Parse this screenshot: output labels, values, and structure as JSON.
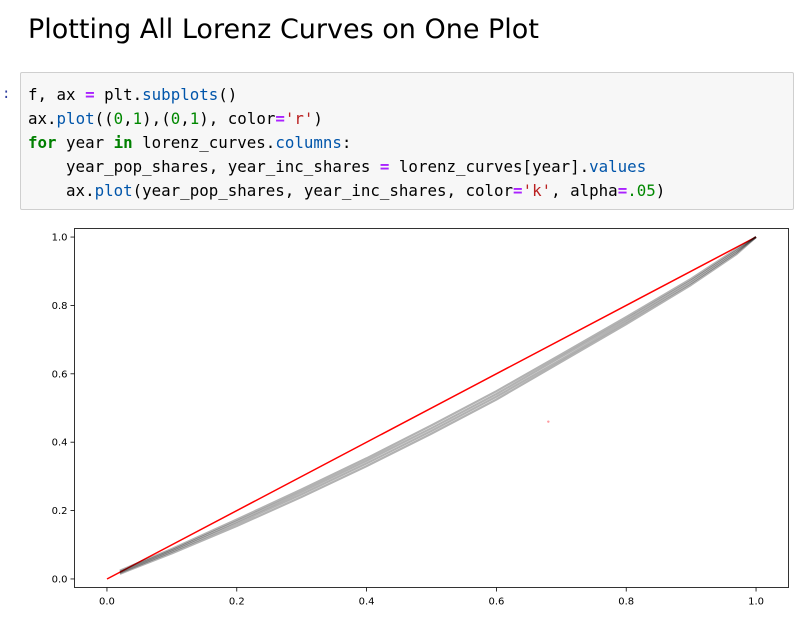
{
  "heading": "Plotting All Lorenz Curves on One Plot",
  "cell": {
    "prompt": ":",
    "lines": [
      [
        {
          "t": "f, ax ",
          "c": ""
        },
        {
          "t": "=",
          "c": "op"
        },
        {
          "t": " plt.",
          "c": ""
        },
        {
          "t": "subplots",
          "c": "fn"
        },
        {
          "t": "()",
          "c": ""
        }
      ],
      [
        {
          "t": "ax.",
          "c": ""
        },
        {
          "t": "plot",
          "c": "fn"
        },
        {
          "t": "((",
          "c": ""
        },
        {
          "t": "0",
          "c": "num"
        },
        {
          "t": ",",
          "c": ""
        },
        {
          "t": "1",
          "c": "num"
        },
        {
          "t": "),(",
          "c": ""
        },
        {
          "t": "0",
          "c": "num"
        },
        {
          "t": ",",
          "c": ""
        },
        {
          "t": "1",
          "c": "num"
        },
        {
          "t": "), color",
          "c": ""
        },
        {
          "t": "=",
          "c": "op"
        },
        {
          "t": "'r'",
          "c": "str"
        },
        {
          "t": ")",
          "c": ""
        }
      ],
      [
        {
          "t": "for",
          "c": "kw"
        },
        {
          "t": " year ",
          "c": ""
        },
        {
          "t": "in",
          "c": "kw"
        },
        {
          "t": " lorenz_curves.",
          "c": ""
        },
        {
          "t": "columns",
          "c": "fn"
        },
        {
          "t": ":",
          "c": ""
        }
      ],
      [
        {
          "t": "    year_pop_shares, year_inc_shares ",
          "c": ""
        },
        {
          "t": "=",
          "c": "op"
        },
        {
          "t": " lorenz_curves[year].",
          "c": ""
        },
        {
          "t": "values",
          "c": "fn"
        }
      ],
      [
        {
          "t": "    ax.",
          "c": ""
        },
        {
          "t": "plot",
          "c": "fn"
        },
        {
          "t": "(year_pop_shares, year_inc_shares, color",
          "c": ""
        },
        {
          "t": "=",
          "c": "op"
        },
        {
          "t": "'k'",
          "c": "str"
        },
        {
          "t": ", alpha",
          "c": ""
        },
        {
          "t": "=",
          "c": "op"
        },
        {
          "t": ".05",
          "c": "num"
        },
        {
          "t": ")",
          "c": ""
        }
      ]
    ]
  },
  "chart_data": {
    "type": "line",
    "title": "",
    "xlabel": "",
    "ylabel": "",
    "xlim": [
      -0.05,
      1.05
    ],
    "ylim": [
      -0.025,
      1.025
    ],
    "xticks": [
      0.0,
      0.2,
      0.4,
      0.6,
      0.8,
      1.0
    ],
    "yticks": [
      0.0,
      0.2,
      0.4,
      0.6,
      0.8,
      1.0
    ],
    "xtick_labels": [
      "0.0",
      "0.2",
      "0.4",
      "0.6",
      "0.8",
      "1.0"
    ],
    "ytick_labels": [
      "0.0",
      "0.2",
      "0.4",
      "0.6",
      "0.8",
      "1.0"
    ],
    "grid": false,
    "series": [
      {
        "color": "#ff0000",
        "alpha": 1.0,
        "x": [
          0,
          1
        ],
        "y": [
          0,
          1
        ]
      },
      {
        "color": "#000000",
        "alpha": 0.3,
        "x": [
          0.02,
          0.1,
          0.2,
          0.3,
          0.4,
          0.5,
          0.6,
          0.7,
          0.8,
          0.9,
          0.97,
          1.0
        ],
        "y": [
          0.015,
          0.075,
          0.155,
          0.24,
          0.33,
          0.425,
          0.525,
          0.635,
          0.745,
          0.86,
          0.95,
          1.0
        ]
      },
      {
        "color": "#000000",
        "alpha": 0.3,
        "x": [
          0.02,
          0.1,
          0.2,
          0.3,
          0.4,
          0.5,
          0.6,
          0.7,
          0.8,
          0.9,
          0.97,
          1.0
        ],
        "y": [
          0.018,
          0.08,
          0.162,
          0.248,
          0.338,
          0.433,
          0.533,
          0.642,
          0.752,
          0.866,
          0.955,
          1.0
        ]
      },
      {
        "color": "#000000",
        "alpha": 0.3,
        "x": [
          0.02,
          0.1,
          0.2,
          0.3,
          0.4,
          0.5,
          0.6,
          0.7,
          0.8,
          0.9,
          0.97,
          1.0
        ],
        "y": [
          0.021,
          0.084,
          0.168,
          0.255,
          0.346,
          0.441,
          0.541,
          0.65,
          0.759,
          0.872,
          0.96,
          1.0
        ]
      },
      {
        "color": "#000000",
        "alpha": 0.3,
        "x": [
          0.02,
          0.1,
          0.2,
          0.3,
          0.4,
          0.5,
          0.6,
          0.7,
          0.8,
          0.9,
          0.97,
          1.0
        ],
        "y": [
          0.024,
          0.088,
          0.174,
          0.262,
          0.353,
          0.449,
          0.549,
          0.657,
          0.766,
          0.878,
          0.965,
          1.0
        ]
      }
    ],
    "points": [
      {
        "x": 0.68,
        "y": 0.46,
        "color": "#ff9aa0"
      }
    ]
  }
}
